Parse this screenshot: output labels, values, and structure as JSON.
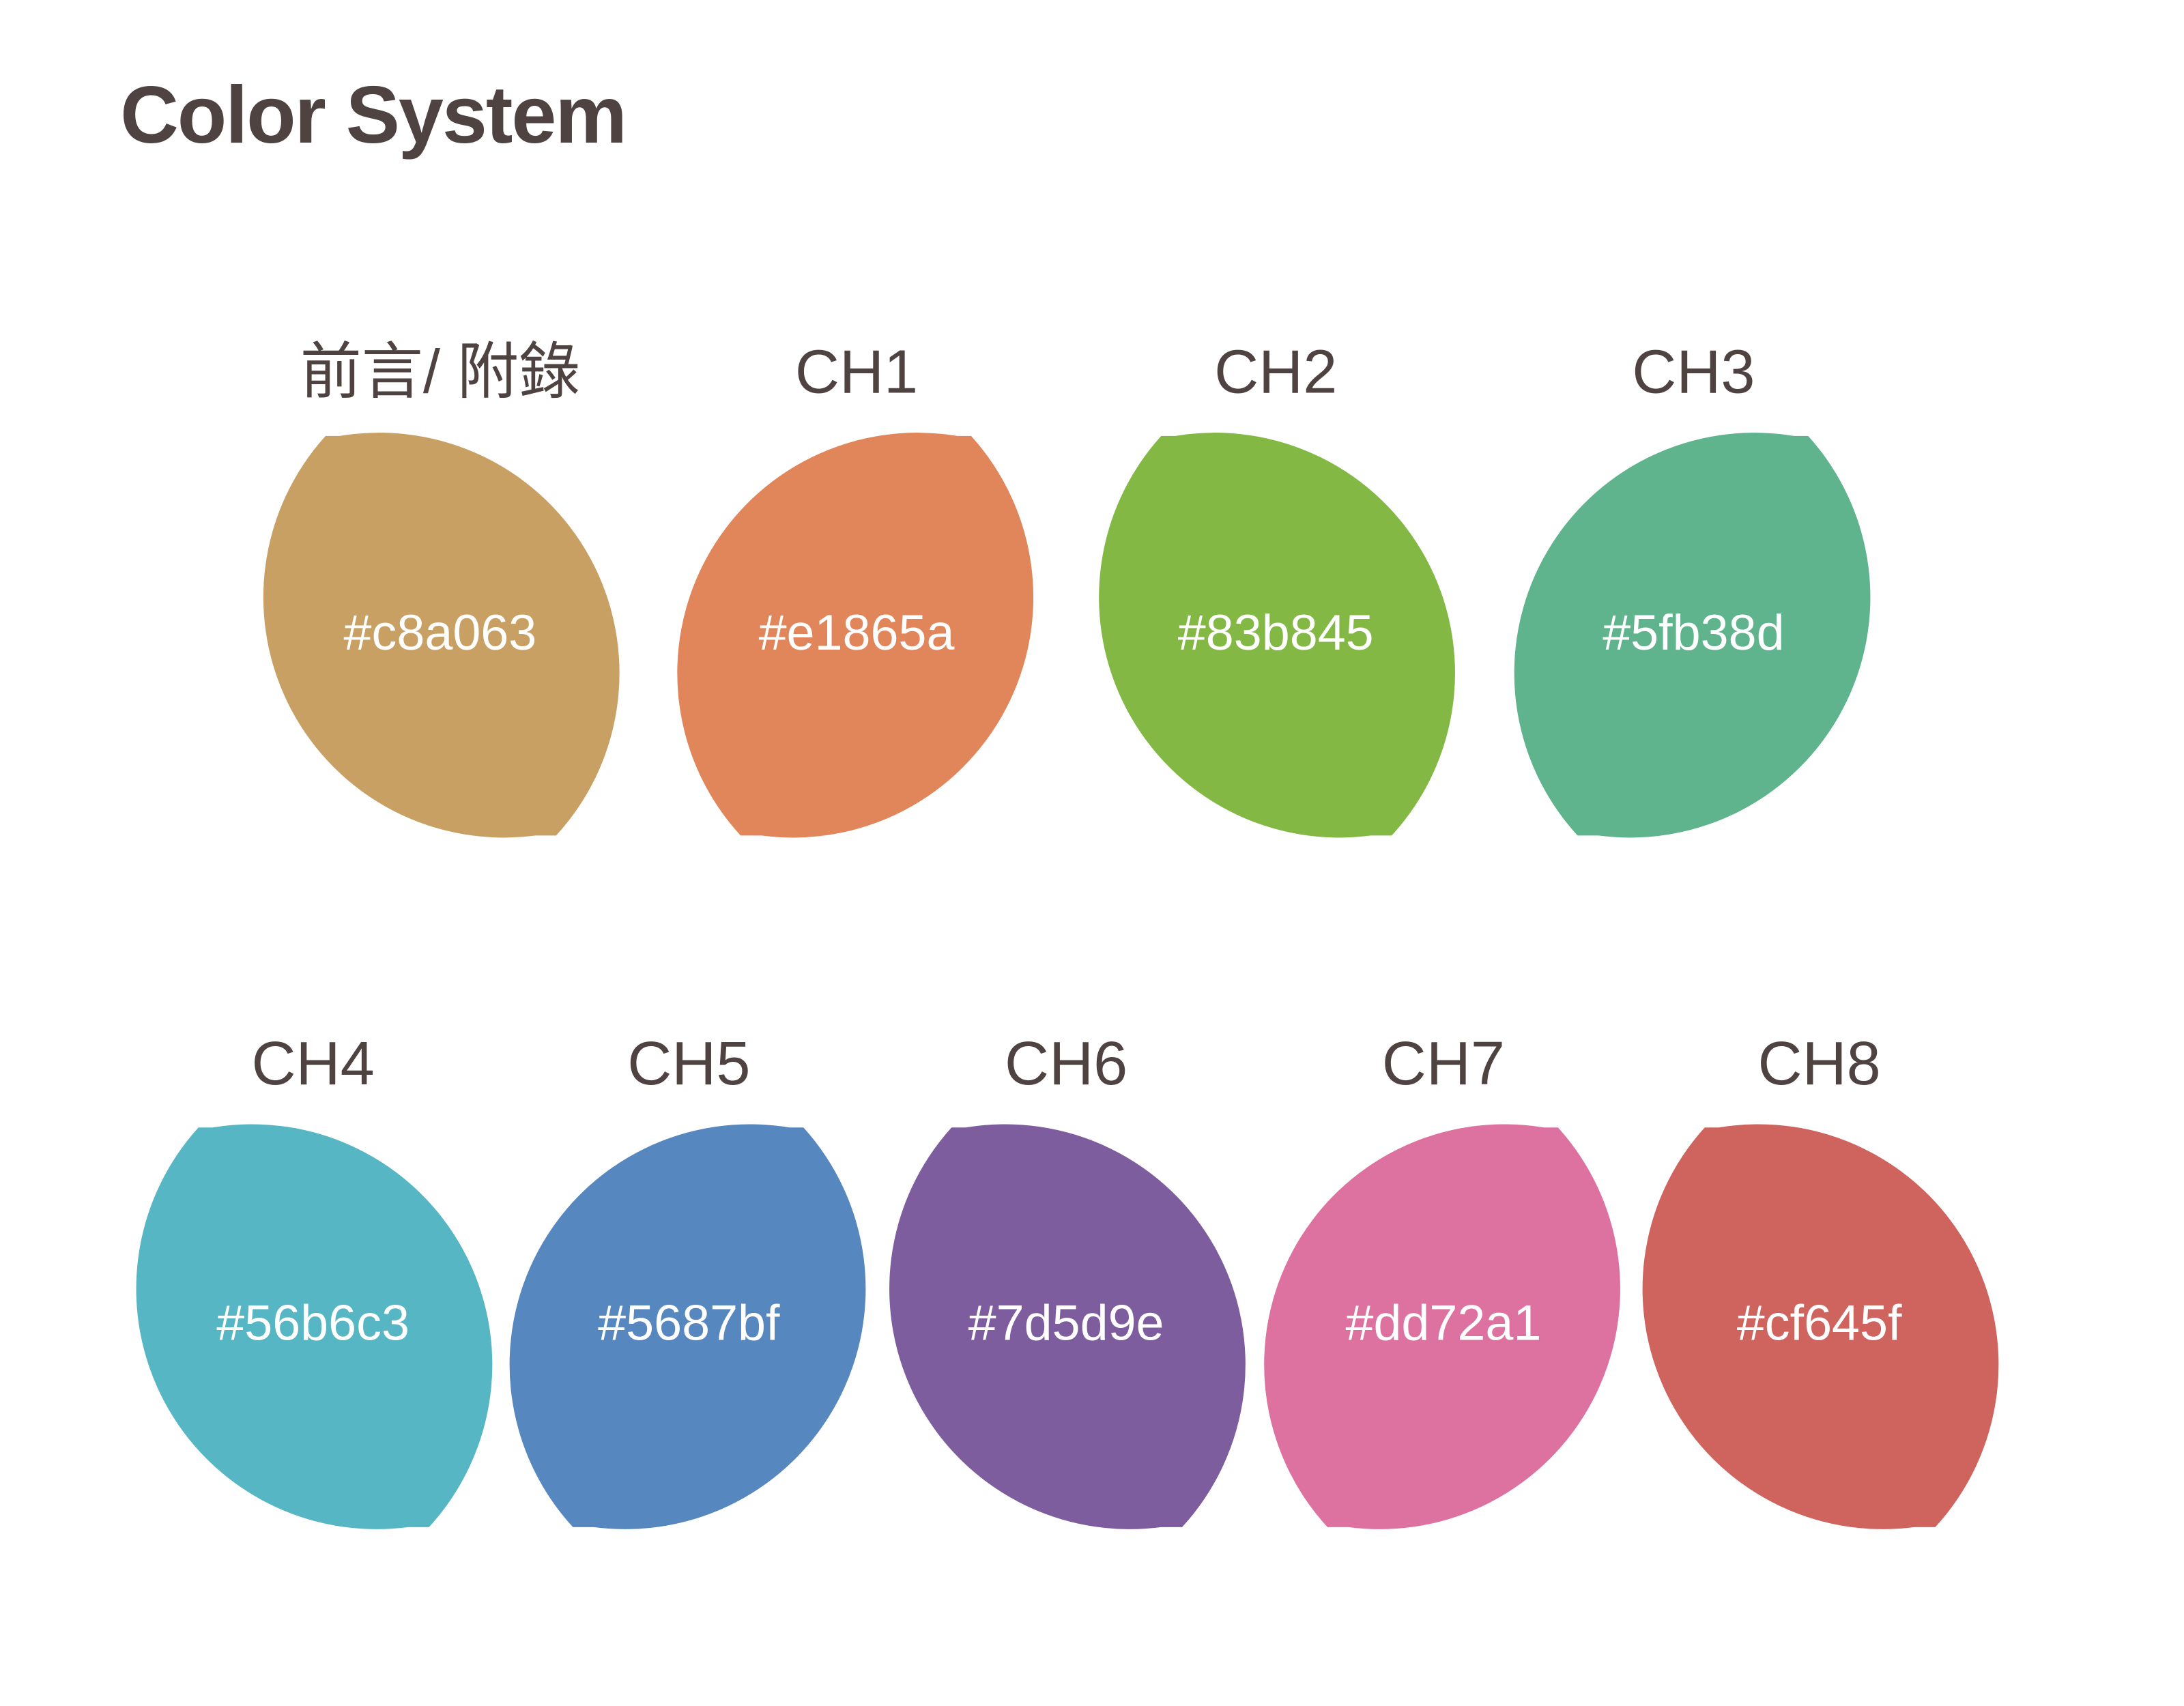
{
  "title": "Color System",
  "rows": [
    [
      {
        "label": "前言/ 附錄",
        "hex": "#c8a063"
      },
      {
        "label": "CH1",
        "hex": "#e1865a"
      },
      {
        "label": "CH2",
        "hex": "#83b845"
      },
      {
        "label": "CH3",
        "hex": "#5fb38d"
      }
    ],
    [
      {
        "label": "CH4",
        "hex": "#56b6c3"
      },
      {
        "label": "CH5",
        "hex": "#5687bf"
      },
      {
        "label": "CH6",
        "hex": "#7d5d9e"
      },
      {
        "label": "CH7",
        "hex": "#dd72a1"
      },
      {
        "label": "CH8",
        "hex": "#cf645f"
      }
    ]
  ]
}
